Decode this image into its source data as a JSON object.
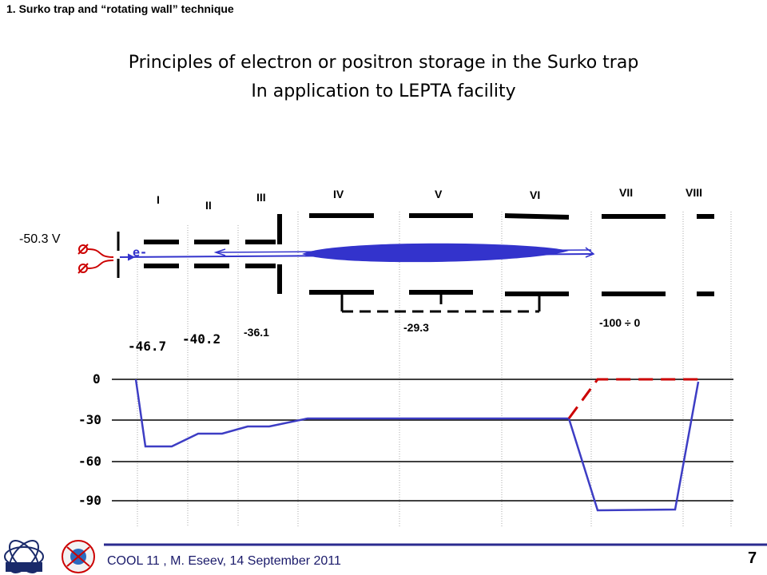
{
  "header": {
    "section": "1. Surko trap and “rotating wall” technique"
  },
  "title": {
    "line1": "Principles of electron or positron storage in the Surko trap",
    "line2": "In application to LEPTA facility"
  },
  "segments": [
    "I",
    "II",
    "III",
    "IV",
    "V",
    "VI",
    "VII",
    "VIII"
  ],
  "source": {
    "voltage": "-50.3 V",
    "particle": "e-"
  },
  "potentials": {
    "seg1": "-46.7",
    "seg2": "-40.2",
    "seg3": "-36.1",
    "seg456": "-29.3",
    "seg7": "-100 ÷ 0"
  },
  "axis": {
    "ticks": [
      "0",
      "-30",
      "-60",
      "-90"
    ]
  },
  "footer": {
    "text": "COOL 11 , M. Eseev, 14 September 2011",
    "page": "7"
  },
  "colors": {
    "beam": "#3333cc",
    "profile": "#3d3dc4",
    "dashed_alt": "#cc0000",
    "source": "#cc0000",
    "footer_line": "#2b2b8f"
  }
}
